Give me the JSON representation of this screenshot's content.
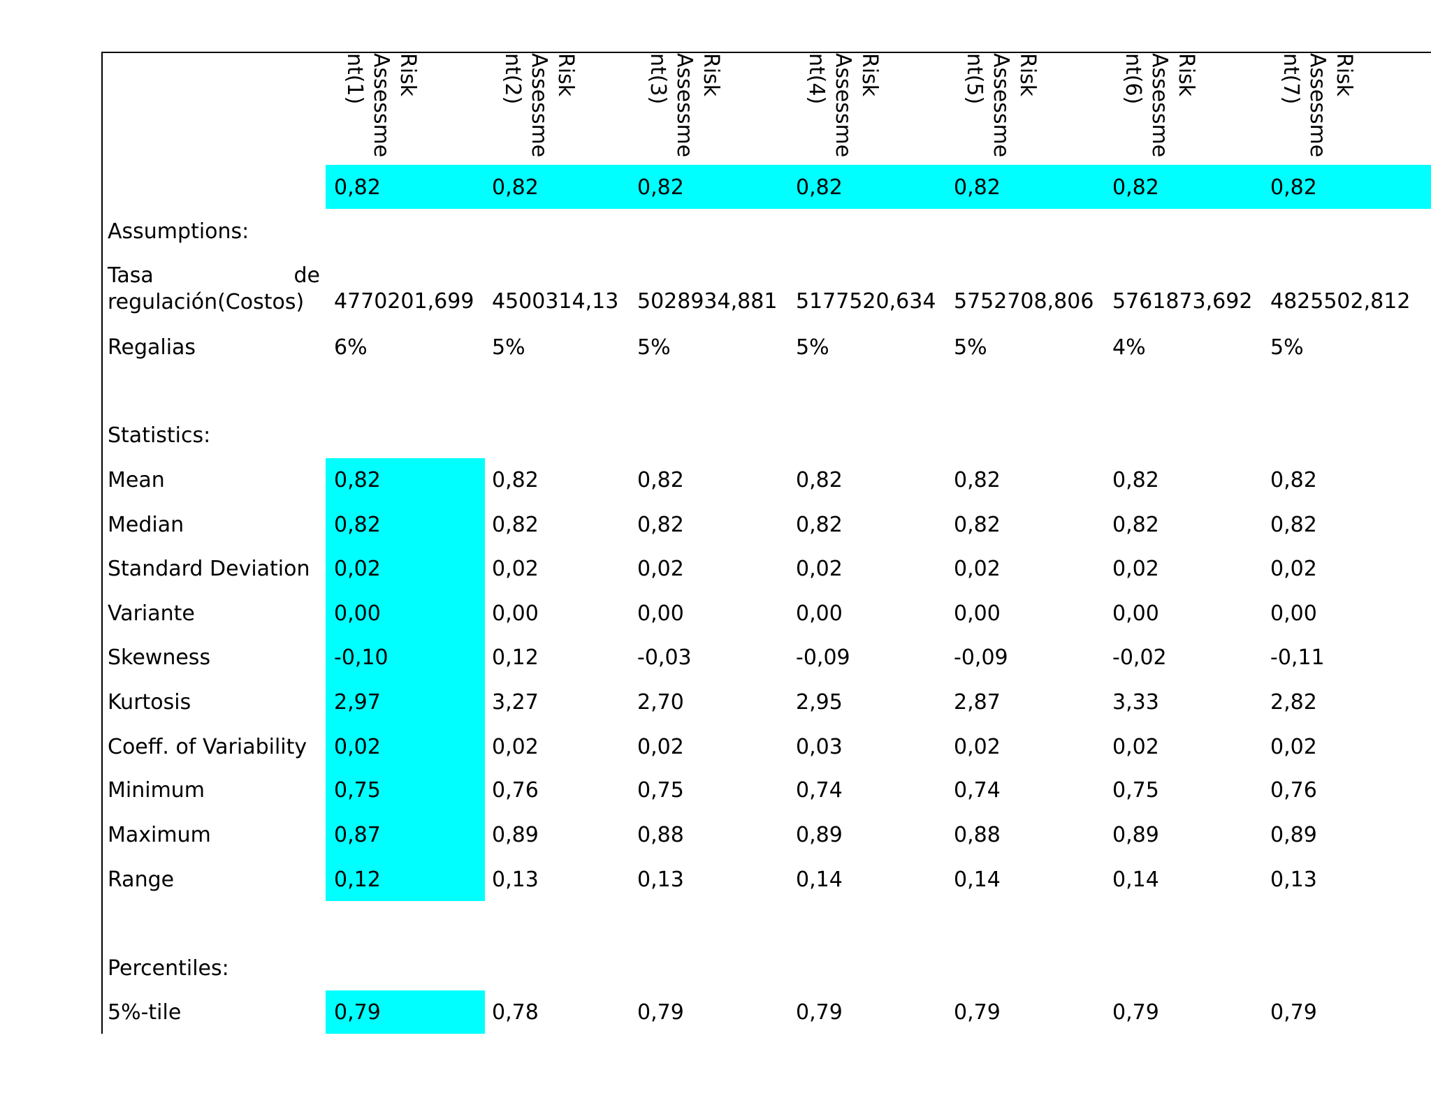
{
  "table": {
    "columns": [
      "Risk Assessment(1)",
      "Risk Assessment(2)",
      "Risk Assessment(3)",
      "Risk Assessment(4)",
      "Risk Assessment(5)",
      "Risk Assessment(6)",
      "Risk Assessment(7)"
    ],
    "top_row": [
      "0,82",
      "0,82",
      "0,82",
      "0,82",
      "0,82",
      "0,82",
      "0,82"
    ],
    "assumptions": {
      "label": "Assumptions:",
      "rows": [
        {
          "label": "Tasa de regulación(Costos)",
          "cells": [
            "4770201,699",
            "4500314,13",
            "5028934,881",
            "5177520,634",
            "5752708,806",
            "5761873,692",
            "4825502,812"
          ]
        },
        {
          "label": "Regalias",
          "cells": [
            "6%",
            "5%",
            "5%",
            "5%",
            "5%",
            "4%",
            "5%"
          ]
        }
      ]
    },
    "statistics": {
      "label": "Statistics:",
      "rows": [
        {
          "label": "Mean",
          "cells": [
            "0,82",
            "0,82",
            "0,82",
            "0,82",
            "0,82",
            "0,82",
            "0,82"
          ]
        },
        {
          "label": "Median",
          "cells": [
            "0,82",
            "0,82",
            "0,82",
            "0,82",
            "0,82",
            "0,82",
            "0,82"
          ]
        },
        {
          "label": "Standard Deviation",
          "cells": [
            "0,02",
            "0,02",
            "0,02",
            "0,02",
            "0,02",
            "0,02",
            "0,02"
          ]
        },
        {
          "label": "Variante",
          "cells": [
            "0,00",
            "0,00",
            "0,00",
            "0,00",
            "0,00",
            "0,00",
            "0,00"
          ]
        },
        {
          "label": "Skewness",
          "cells": [
            "-0,10",
            "0,12",
            "-0,03",
            "-0,09",
            "-0,09",
            "-0,02",
            "-0,11"
          ]
        },
        {
          "label": "Kurtosis",
          "cells": [
            "2,97",
            "3,27",
            "2,70",
            "2,95",
            "2,87",
            "3,33",
            "2,82"
          ]
        },
        {
          "label": "Coeff. of Variability",
          "cells": [
            "0,02",
            "0,02",
            "0,02",
            "0,03",
            "0,02",
            "0,02",
            "0,02"
          ]
        },
        {
          "label": "Minimum",
          "cells": [
            "0,75",
            "0,76",
            "0,75",
            "0,74",
            "0,74",
            "0,75",
            "0,76"
          ]
        },
        {
          "label": "Maximum",
          "cells": [
            "0,87",
            "0,89",
            "0,88",
            "0,89",
            "0,88",
            "0,89",
            "0,89"
          ]
        },
        {
          "label": "Range",
          "cells": [
            "0,12",
            "0,13",
            "0,13",
            "0,14",
            "0,14",
            "0,14",
            "0,13"
          ]
        }
      ]
    },
    "percentiles": {
      "label": "Percentiles:",
      "rows": [
        {
          "label": "5%-tile",
          "cells": [
            "0,79",
            "0,78",
            "0,79",
            "0,79",
            "0,79",
            "0,79",
            "0,79"
          ]
        }
      ]
    }
  }
}
